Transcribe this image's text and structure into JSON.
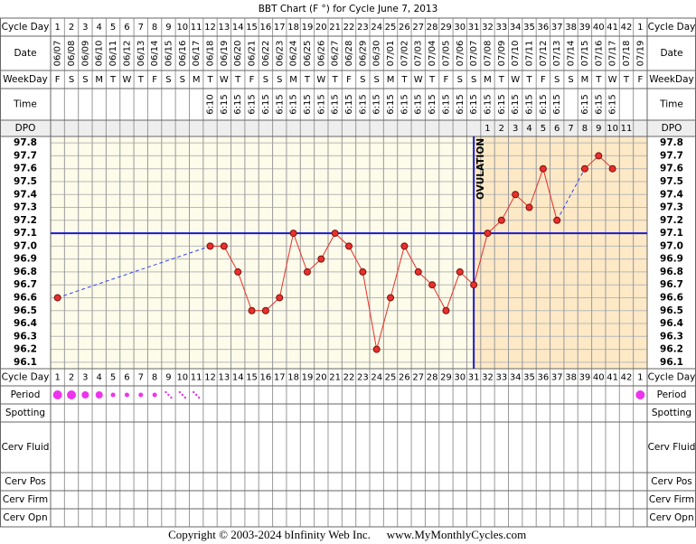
{
  "chart_data": {
    "type": "line",
    "title": "BBT Chart (F °) for Cycle June 7, 2013",
    "row_labels": [
      "Cycle Day",
      "Date",
      "WeekDay",
      "Time",
      "DPO",
      "Cycle Day",
      "Period",
      "Spotting",
      "Cerv Fluid",
      "Cerv Pos",
      "Cerv Firm",
      "Cerv Opn"
    ],
    "categories": [
      1,
      2,
      3,
      4,
      5,
      6,
      7,
      8,
      9,
      10,
      11,
      12,
      13,
      14,
      15,
      16,
      17,
      18,
      19,
      20,
      21,
      22,
      23,
      24,
      25,
      26,
      27,
      28,
      29,
      30,
      31,
      32,
      33,
      34,
      35,
      36,
      37,
      38,
      39,
      40,
      41,
      42,
      1
    ],
    "dates": [
      "06/07",
      "06/08",
      "06/09",
      "06/10",
      "06/11",
      "06/12",
      "06/13",
      "06/14",
      "06/15",
      "06/16",
      "06/17",
      "06/18",
      "06/19",
      "06/20",
      "06/21",
      "06/22",
      "06/23",
      "06/24",
      "06/25",
      "06/26",
      "06/27",
      "06/28",
      "06/29",
      "06/30",
      "07/01",
      "07/02",
      "07/03",
      "07/04",
      "07/05",
      "07/06",
      "07/07",
      "07/08",
      "07/09",
      "07/10",
      "07/11",
      "07/12",
      "07/13",
      "07/14",
      "07/15",
      "07/16",
      "07/17",
      "07/18",
      "07/19"
    ],
    "weekdays": [
      "F",
      "S",
      "S",
      "M",
      "T",
      "W",
      "T",
      "F",
      "S",
      "S",
      "M",
      "T",
      "W",
      "T",
      "F",
      "S",
      "S",
      "M",
      "T",
      "W",
      "T",
      "F",
      "S",
      "S",
      "M",
      "T",
      "W",
      "T",
      "F",
      "S",
      "S",
      "M",
      "T",
      "W",
      "T",
      "F",
      "S",
      "S",
      "M",
      "T",
      "W",
      "T",
      "F"
    ],
    "times": [
      null,
      null,
      null,
      null,
      null,
      null,
      null,
      null,
      null,
      null,
      null,
      "6:10",
      "6:15",
      "6:15",
      "6:15",
      "6:15",
      "6:15",
      "6:15",
      "6:15",
      "6:15",
      "6:15",
      "6:15",
      "6:15",
      "6:15",
      "6:15",
      "6:15",
      "6:15",
      "6:15",
      "6:15",
      "6:15",
      "6:15",
      "6:15",
      "6:15",
      "6:15",
      "6:15",
      "6:15",
      "6:15",
      null,
      "6:15",
      "6:15",
      "6:15",
      null,
      null
    ],
    "dpo": [
      null,
      null,
      null,
      null,
      null,
      null,
      null,
      null,
      null,
      null,
      null,
      null,
      null,
      null,
      null,
      null,
      null,
      null,
      null,
      null,
      null,
      null,
      null,
      null,
      null,
      null,
      null,
      null,
      null,
      null,
      null,
      1,
      2,
      3,
      4,
      5,
      6,
      7,
      8,
      9,
      10,
      11,
      null
    ],
    "series": [
      {
        "color": "#e8302c",
        "values": [
          96.6,
          null,
          null,
          null,
          null,
          null,
          null,
          null,
          null,
          null,
          null,
          97.0,
          97.0,
          96.8,
          96.5,
          96.5,
          96.6,
          97.1,
          96.8,
          96.9,
          97.1,
          97.0,
          96.8,
          96.2,
          96.6,
          97.0,
          96.8,
          96.7,
          96.5,
          96.8,
          96.7,
          97.1,
          97.2,
          97.4,
          97.3,
          97.6,
          97.2,
          null,
          97.6,
          97.7,
          97.6,
          null,
          null
        ]
      }
    ],
    "ylim": [
      96.05,
      97.85
    ],
    "yticks": [
      97.8,
      97.7,
      97.6,
      97.5,
      97.4,
      97.3,
      97.2,
      97.1,
      {
        "value": 97,
        "label": "97.0"
      },
      96.9,
      96.8,
      96.7,
      96.6,
      96.5,
      96.4,
      96.3,
      96.2,
      96.1
    ],
    "grid": true,
    "coverline": 97.1,
    "ovulation_day": 31,
    "annotation": "OVULATION",
    "copyright": "Copyright © 2003-2024 bInfinity Web Inc.",
    "website": "www.MyMonthlyCycles.com"
  }
}
